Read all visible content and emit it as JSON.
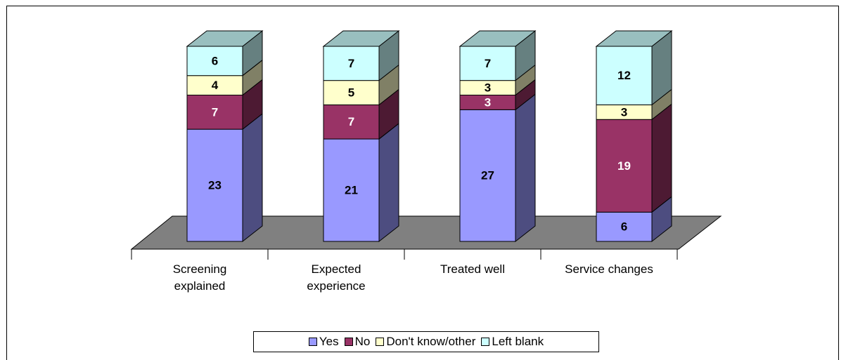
{
  "chart_data": {
    "type": "bar3d_stacked",
    "categories": [
      "Screening explained",
      "Expected experience",
      "Treated well",
      "Service changes"
    ],
    "series": [
      {
        "name": "Yes",
        "color": "#9999ff",
        "values": [
          23,
          21,
          27,
          6
        ]
      },
      {
        "name": "No",
        "color": "#993366",
        "values": [
          7,
          7,
          3,
          19
        ]
      },
      {
        "name": "Don't know/other",
        "color": "#ffffcc",
        "values": [
          4,
          5,
          3,
          3
        ]
      },
      {
        "name": "Left blank",
        "color": "#ccffff",
        "values": [
          6,
          7,
          7,
          12
        ]
      }
    ],
    "legend": "bottom"
  }
}
